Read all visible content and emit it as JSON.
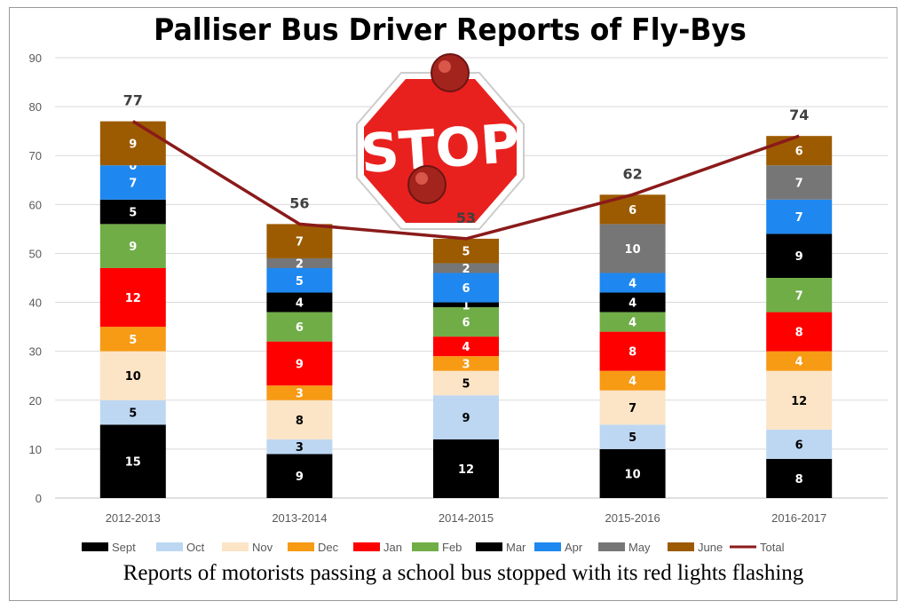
{
  "title": "Palliser Bus Driver Reports of Fly-Bys",
  "caption": "Reports of motorists  passing a school bus stopped with its red lights flashing",
  "stop_sign": {
    "text": "STOP",
    "color": "#e8211f"
  },
  "chart_data": {
    "type": "bar",
    "stacked": true,
    "categories": [
      "2012-2013",
      "2013-2014",
      "2014-2015",
      "2015-2016",
      "2016-2017"
    ],
    "ylim": [
      0,
      90
    ],
    "yticks": [
      0,
      10,
      20,
      30,
      40,
      50,
      60,
      70,
      80,
      90
    ],
    "grid": true,
    "legend_position": "bottom",
    "series": [
      {
        "name": "Sept",
        "color": "#000000",
        "label_color": "#ffffff",
        "values": [
          15,
          9,
          12,
          10,
          8
        ]
      },
      {
        "name": "Oct",
        "color": "#bdd7f2",
        "label_color": "#000000",
        "values": [
          5,
          3,
          9,
          5,
          6
        ]
      },
      {
        "name": "Nov",
        "color": "#fce4c6",
        "label_color": "#000000",
        "values": [
          10,
          8,
          5,
          7,
          12
        ]
      },
      {
        "name": "Dec",
        "color": "#f79a14",
        "label_color": "#ffffff",
        "values": [
          5,
          3,
          3,
          4,
          4
        ]
      },
      {
        "name": "Jan",
        "color": "#ff0000",
        "label_color": "#ffffff",
        "values": [
          12,
          9,
          4,
          8,
          8
        ]
      },
      {
        "name": "Feb",
        "color": "#70ad47",
        "label_color": "#ffffff",
        "values": [
          9,
          6,
          6,
          4,
          7
        ]
      },
      {
        "name": "Mar",
        "color": "#000000",
        "label_color": "#ffffff",
        "values": [
          5,
          4,
          1,
          4,
          9
        ]
      },
      {
        "name": "Apr",
        "color": "#1e88f0",
        "label_color": "#ffffff",
        "values": [
          7,
          5,
          6,
          4,
          7
        ]
      },
      {
        "name": "May",
        "color": "#767676",
        "label_color": "#ffffff",
        "values": [
          0,
          2,
          2,
          10,
          7
        ]
      },
      {
        "name": "June",
        "color": "#9c5b00",
        "label_color": "#ffffff",
        "values": [
          9,
          7,
          5,
          6,
          6
        ]
      }
    ],
    "total": {
      "name": "Total",
      "color": "#8b1a1a",
      "type": "line",
      "values": [
        77,
        56,
        53,
        62,
        74
      ]
    }
  }
}
